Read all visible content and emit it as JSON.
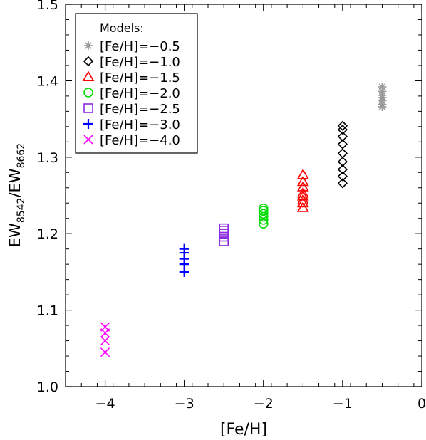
{
  "chart_data": {
    "type": "scatter",
    "xlabel": "[Fe/H]",
    "ylabel": {
      "base": "EW",
      "sub1": "8542",
      "mid": "/EW",
      "sub2": "8662"
    },
    "xlim": [
      -4.5,
      0
    ],
    "ylim": [
      1.0,
      1.5
    ],
    "xticks": [
      -4,
      -3,
      -2,
      -1,
      0
    ],
    "xtick_labels": [
      "−4",
      "−3",
      "−2",
      "−1",
      "0"
    ],
    "yticks": [
      1.0,
      1.1,
      1.2,
      1.3,
      1.4,
      1.5
    ],
    "ytick_labels": [
      "1.0",
      "1.1",
      "1.2",
      "1.3",
      "1.4",
      "1.5"
    ],
    "grid": false,
    "legend": {
      "placement": "top-left",
      "title": "Models:",
      "entries": [
        {
          "label": "[Fe/H]=−0.5",
          "series": 0
        },
        {
          "label": "[Fe/H]=−1.0",
          "series": 1
        },
        {
          "label": "[Fe/H]=−1.5",
          "series": 2
        },
        {
          "label": "[Fe/H]=−2.0",
          "series": 3
        },
        {
          "label": "[Fe/H]=−2.5",
          "series": 4
        },
        {
          "label": "[Fe/H]=−3.0",
          "series": 5
        },
        {
          "label": "[Fe/H]=−4.0",
          "series": 6
        }
      ]
    },
    "series": [
      {
        "name": "[Fe/H]=−0.5",
        "marker": "asterisk",
        "color": "#999999",
        "x": [
          -0.5,
          -0.5,
          -0.5,
          -0.5,
          -0.5,
          -0.5,
          -0.5
        ],
        "y": [
          1.392,
          1.386,
          1.381,
          1.378,
          1.374,
          1.369,
          1.366
        ]
      },
      {
        "name": "[Fe/H]=−1.0",
        "marker": "diamond",
        "color": "#000000",
        "x": [
          -1.0,
          -1.0,
          -1.0,
          -1.0,
          -1.0,
          -1.0,
          -1.0,
          -1.0,
          -1.0
        ],
        "y": [
          1.341,
          1.336,
          1.327,
          1.317,
          1.305,
          1.294,
          1.284,
          1.275,
          1.266
        ]
      },
      {
        "name": "[Fe/H]=−1.5",
        "marker": "triangle",
        "color": "#ff0000",
        "x": [
          -1.5,
          -1.5,
          -1.5,
          -1.5,
          -1.5,
          -1.5,
          -1.5,
          -1.5
        ],
        "y": [
          1.277,
          1.268,
          1.261,
          1.253,
          1.249,
          1.244,
          1.24,
          1.234
        ]
      },
      {
        "name": "[Fe/H]=−2.0",
        "marker": "circle",
        "color": "#00dd00",
        "x": [
          -2.0,
          -2.0,
          -2.0,
          -2.0,
          -2.0,
          -2.0
        ],
        "y": [
          1.233,
          1.23,
          1.226,
          1.222,
          1.218,
          1.213
        ]
      },
      {
        "name": "[Fe/H]=−2.5",
        "marker": "square",
        "color": "#8a2be2",
        "x": [
          -2.5,
          -2.5,
          -2.5,
          -2.5,
          -2.5
        ],
        "y": [
          1.207,
          1.204,
          1.2,
          1.196,
          1.19
        ]
      },
      {
        "name": "[Fe/H]=−3.0",
        "marker": "plus",
        "color": "#0000ff",
        "x": [
          -3.0,
          -3.0,
          -3.0,
          -3.0,
          -3.0
        ],
        "y": [
          1.18,
          1.175,
          1.167,
          1.16,
          1.15
        ]
      },
      {
        "name": "[Fe/H]=−4.0",
        "marker": "x",
        "color": "#ff00ff",
        "x": [
          -4.0,
          -4.0,
          -4.0,
          -4.0
        ],
        "y": [
          1.078,
          1.07,
          1.06,
          1.045
        ]
      }
    ]
  }
}
